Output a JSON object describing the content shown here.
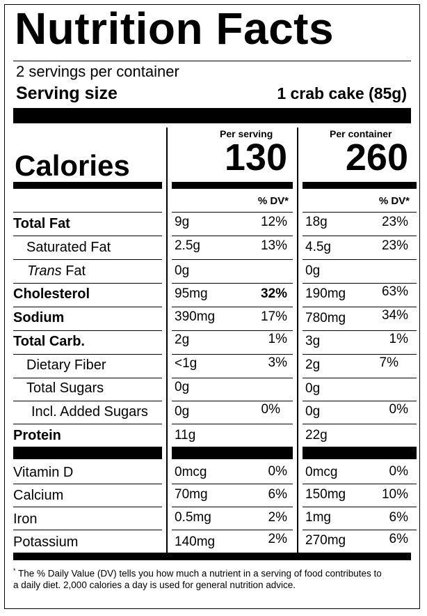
{
  "title": "Nutrition Facts",
  "servings_per_container": "2 servings per container",
  "serving_size_label": "Serving size",
  "serving_size_value": "1 crab cake (85g)",
  "calories_label": "Calories",
  "per_serving": {
    "header": "Per serving",
    "calories": "130"
  },
  "per_container": {
    "header": "Per container",
    "calories": "260"
  },
  "dv_header": "% DV*",
  "nutrients": [
    {
      "name": "Total Fat",
      "serving_amount": "9g",
      "serving_dv": "12%",
      "container_amount": "18g",
      "container_dv": "23%"
    },
    {
      "name": "Saturated Fat",
      "serving_amount": "2.5g",
      "serving_dv": "13%",
      "container_amount": "4.5g",
      "container_dv": "23%"
    },
    {
      "name_italic": "Trans",
      "name_rest": " Fat",
      "serving_amount": "0g",
      "serving_dv": "",
      "container_amount": "0g",
      "container_dv": ""
    },
    {
      "name": "Cholesterol",
      "serving_amount": "95mg",
      "serving_dv": "32%",
      "container_amount": "190mg",
      "container_dv": "63%"
    },
    {
      "name": "Sodium",
      "serving_amount": "390mg",
      "serving_dv": "17%",
      "container_amount": "780mg",
      "container_dv": "34%"
    },
    {
      "name": "Total Carb.",
      "serving_amount": "2g",
      "serving_dv": "1%",
      "container_amount": "3g",
      "container_dv": "1%"
    },
    {
      "name": "Dietary Fiber",
      "serving_amount": "<1g",
      "serving_dv": "3%",
      "container_amount": "2g",
      "container_dv": "7%"
    },
    {
      "name": "Total Sugars",
      "serving_amount": "0g",
      "serving_dv": "",
      "container_amount": "0g",
      "container_dv": ""
    },
    {
      "name": "Incl. Added Sugars",
      "serving_amount": "0g",
      "serving_dv": "0%",
      "container_amount": "0g",
      "container_dv": "0%"
    },
    {
      "name": "Protein",
      "serving_amount": "11g",
      "serving_dv": "",
      "container_amount": "22g",
      "container_dv": ""
    }
  ],
  "vitamins": [
    {
      "name": "Vitamin D",
      "serving_amount": "0mcg",
      "serving_dv": "0%",
      "container_amount": "0mcg",
      "container_dv": "0%"
    },
    {
      "name": "Calcium",
      "serving_amount": "70mg",
      "serving_dv": "6%",
      "container_amount": "150mg",
      "container_dv": "10%"
    },
    {
      "name": "Iron",
      "serving_amount": "0.5mg",
      "serving_dv": "2%",
      "container_amount": "1mg",
      "container_dv": "6%"
    },
    {
      "name": "Potassium",
      "serving_amount": "140mg",
      "serving_dv": "2%",
      "container_amount": "270mg",
      "container_dv": "6%"
    }
  ],
  "footnote_marker": "*",
  "footnote": "The % Daily Value (DV) tells you how much a nutrient in a serving of food contributes to a daily diet. 2,000 calories a day is used for general nutrition advice."
}
